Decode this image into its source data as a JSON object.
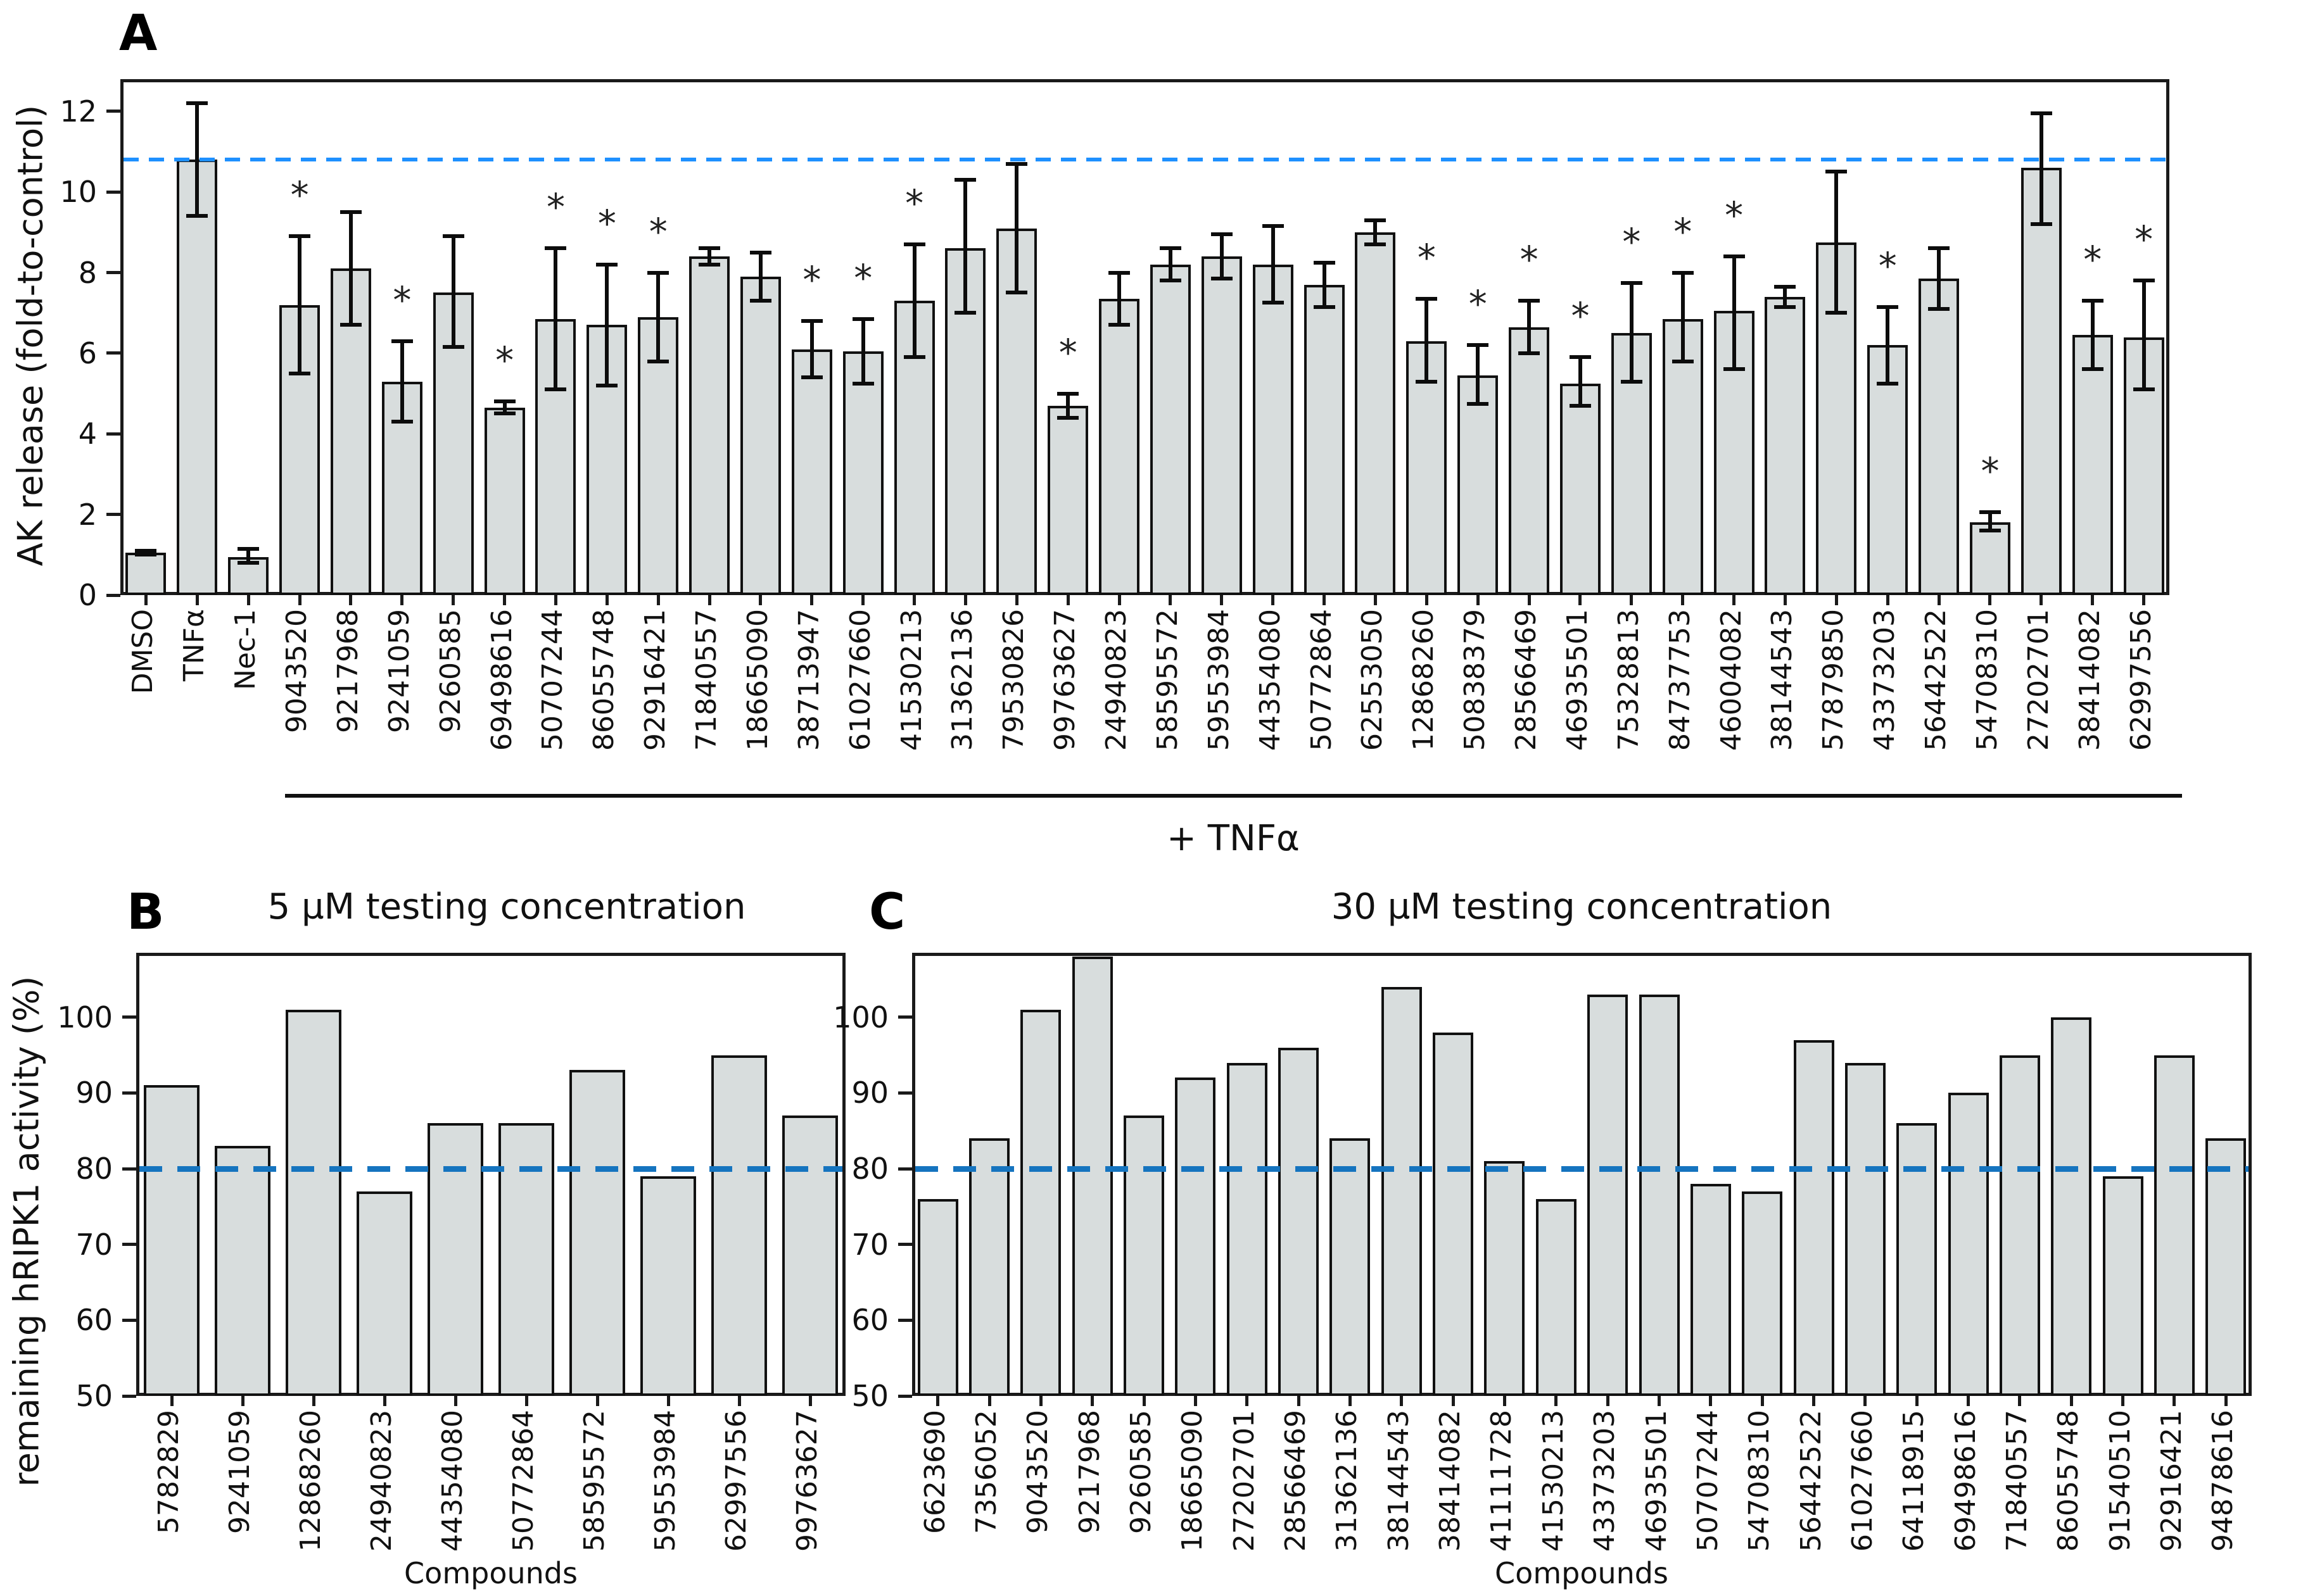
{
  "figure": {
    "background": "#ffffff"
  },
  "chart_data": [
    {
      "id": "A",
      "type": "bar",
      "panel_letter": "A",
      "title": "",
      "ylabel": "AK release (fold-to-control)",
      "yticks": [
        0,
        2,
        4,
        6,
        8,
        10,
        12
      ],
      "ylim": [
        0,
        12.8
      ],
      "grid": false,
      "legend": "none",
      "dashed_line": {
        "y": 10.8,
        "color": "#1e90ff"
      },
      "group_label": "+ TNFα",
      "bar_fill": "#d8dddd",
      "bar_border": "#111111",
      "categories": [
        "DMSO",
        "TNFα",
        "Nec-1",
        "9043520",
        "9217968",
        "9241059",
        "9260585",
        "69498616",
        "50707244",
        "86055748",
        "92916421",
        "71840557",
        "18665090",
        "38713947",
        "61027660",
        "41530213",
        "31362136",
        "79530826",
        "99763627",
        "24940823",
        "58595572",
        "59553984",
        "44354080",
        "50772864",
        "62553050",
        "12868260",
        "50838379",
        "28566469",
        "46935501",
        "75328813",
        "84737753",
        "46004082",
        "38144543",
        "57879850",
        "43373203",
        "56442522",
        "54708310",
        "27202701",
        "38414082",
        "62997556"
      ],
      "values": [
        1.05,
        10.8,
        0.95,
        7.2,
        8.1,
        5.3,
        7.5,
        4.65,
        6.85,
        6.7,
        6.9,
        8.4,
        7.9,
        6.1,
        6.05,
        7.3,
        8.6,
        9.1,
        4.7,
        7.35,
        8.2,
        8.4,
        8.2,
        7.7,
        9.0,
        6.3,
        5.45,
        6.65,
        5.25,
        6.5,
        6.85,
        7.05,
        7.4,
        8.75,
        6.2,
        7.85,
        1.8,
        10.6,
        6.45,
        6.4
      ],
      "err_lo": [
        1.0,
        9.4,
        0.8,
        5.5,
        6.7,
        4.3,
        6.15,
        4.5,
        5.1,
        5.2,
        5.8,
        8.2,
        7.3,
        5.4,
        5.25,
        5.9,
        7.0,
        7.5,
        4.4,
        6.7,
        7.8,
        7.85,
        7.25,
        7.15,
        8.7,
        5.3,
        4.75,
        6.0,
        4.7,
        5.3,
        5.8,
        5.6,
        7.15,
        7.0,
        5.25,
        7.1,
        1.6,
        9.2,
        5.6,
        5.1
      ],
      "err_hi": [
        1.1,
        12.2,
        1.15,
        8.9,
        9.5,
        6.3,
        8.9,
        4.8,
        8.6,
        8.2,
        8.0,
        8.6,
        8.5,
        6.8,
        6.85,
        8.7,
        10.3,
        10.7,
        5.0,
        8.0,
        8.6,
        8.95,
        9.15,
        8.25,
        9.3,
        7.35,
        6.2,
        7.3,
        5.9,
        7.75,
        8.0,
        8.4,
        7.65,
        10.5,
        7.15,
        8.6,
        2.05,
        11.95,
        7.3,
        7.8
      ],
      "significant": [
        false,
        false,
        false,
        true,
        false,
        true,
        false,
        true,
        true,
        true,
        true,
        false,
        false,
        true,
        true,
        true,
        false,
        false,
        true,
        false,
        false,
        false,
        false,
        false,
        false,
        true,
        true,
        true,
        true,
        true,
        true,
        true,
        false,
        false,
        true,
        false,
        true,
        false,
        true,
        true
      ]
    },
    {
      "id": "B",
      "type": "bar",
      "panel_letter": "B",
      "title": "5 µM testing concentration",
      "ylabel": "remaining hRIPK1 activity (%)",
      "xlabel": "Compounds",
      "yticks": [
        50,
        60,
        70,
        80,
        90,
        100
      ],
      "ylim": [
        50,
        108.5
      ],
      "grid": false,
      "legend": "none",
      "dashed_line": {
        "y": 80,
        "color": "#1574bf"
      },
      "bar_fill": "#d8dddd",
      "bar_border": "#111111",
      "categories": [
        "5782829",
        "9241059",
        "12868260",
        "24940823",
        "44354080",
        "50772864",
        "58595572",
        "59553984",
        "62997556",
        "99763627"
      ],
      "values": [
        91,
        83,
        101,
        77,
        86,
        86,
        93,
        79,
        95,
        87
      ]
    },
    {
      "id": "C",
      "type": "bar",
      "panel_letter": "C",
      "title": "30 µM testing concentration",
      "ylabel": "remaining hRIPK1 activity (%)",
      "xlabel": "Compounds",
      "yticks": [
        50,
        60,
        70,
        80,
        90,
        100
      ],
      "ylim": [
        50,
        108.5
      ],
      "grid": false,
      "legend": "none",
      "dashed_line": {
        "y": 80,
        "color": "#1574bf"
      },
      "bar_fill": "#d8dddd",
      "bar_border": "#111111",
      "categories": [
        "6623690",
        "7356052",
        "9043520",
        "9217968",
        "9260585",
        "18665090",
        "27202701",
        "28566469",
        "31362136",
        "38144543",
        "38414082",
        "41111728",
        "41530213",
        "43373203",
        "46935501",
        "50707244",
        "54708310",
        "56442522",
        "61027660",
        "64118915",
        "69498616",
        "71840557",
        "86055748",
        "91540510",
        "92916421",
        "94878616"
      ],
      "values": [
        76,
        84,
        101,
        108,
        87,
        92,
        94,
        96,
        84,
        104,
        98,
        81,
        76,
        103,
        103,
        78,
        77,
        97,
        94,
        86,
        90,
        95,
        100,
        79,
        95,
        84
      ]
    }
  ]
}
